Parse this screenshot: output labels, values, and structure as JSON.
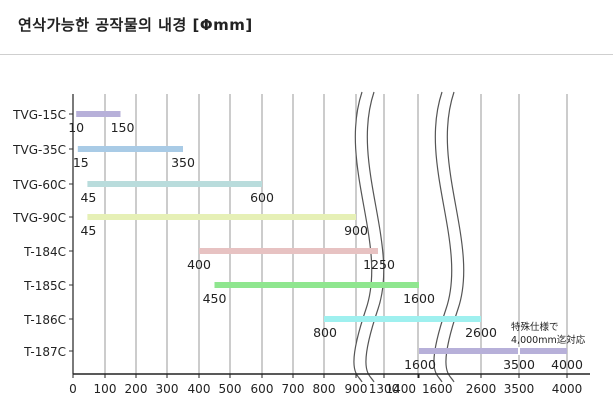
{
  "page": {
    "title": "연삭가능한 공작물의 내경 [Φmm]"
  },
  "chart_data": {
    "type": "bar",
    "orientation": "horizontal-range",
    "title": "연삭가능한 공작물의 내경 [Φmm]",
    "x_axis": {
      "tick_labels": [
        "0",
        "100",
        "200",
        "300",
        "400",
        "500",
        "600",
        "700",
        "800",
        "900",
        "1300",
        "1400",
        "1600",
        "2600",
        "3500",
        "4000"
      ],
      "segments": [
        {
          "range": [
            0,
            900
          ]
        },
        {
          "break_after": true,
          "range": [
            1300,
            1400
          ]
        },
        {
          "break_after": true,
          "range": [
            1600,
            4000
          ]
        }
      ]
    },
    "grid": true,
    "series": [
      {
        "model": "TVG-15C",
        "min": 10,
        "max": 150,
        "color": "#b7b0d9",
        "labels": [
          "10",
          "150"
        ]
      },
      {
        "model": "TVG-35C",
        "min": 15,
        "max": 350,
        "color": "#a9cbe6",
        "labels": [
          "15",
          "350"
        ]
      },
      {
        "model": "TVG-60C",
        "min": 45,
        "max": 600,
        "color": "#b9dcdc",
        "labels": [
          "45",
          "600"
        ]
      },
      {
        "model": "TVG-90C",
        "min": 45,
        "max": 900,
        "color": "#e6f0b6",
        "labels": [
          "45",
          "900"
        ]
      },
      {
        "model": "T-184C",
        "min": 400,
        "max": 1250,
        "color": "#e7c2c2",
        "labels": [
          "400",
          "1250"
        ]
      },
      {
        "model": "T-185C",
        "min": 450,
        "max": 1600,
        "color": "#8fe68f",
        "labels": [
          "450",
          "1600"
        ]
      },
      {
        "model": "T-186C",
        "min": 800,
        "max": 2600,
        "color": "#9ff0ef",
        "labels": [
          "800",
          "2600"
        ]
      },
      {
        "model": "T-187C",
        "min": 1600,
        "max": 4000,
        "special_min": 3500,
        "color": "#b7b0d9",
        "labels": [
          "1600",
          "3500",
          "4000"
        ],
        "note": [
          "特殊仕様で",
          "4,000mm迄対応"
        ]
      }
    ]
  }
}
